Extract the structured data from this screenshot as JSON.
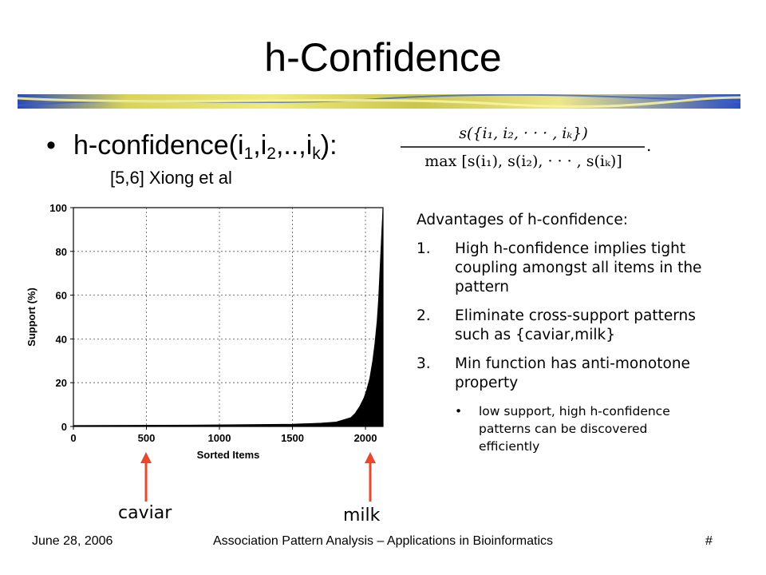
{
  "slide": {
    "title": "h-Confidence",
    "bullet": {
      "prefix": "h-confidence(i",
      "sub1": "1",
      "mid1": ",i",
      "sub2": "2",
      "mid2": ",..,i",
      "subk": "k",
      "suffix": "):"
    },
    "citation": "[5,6] Xiong et al",
    "formula": {
      "numerator": "s({i₁, i₂, · · · , iₖ})",
      "denominator": "max [s(i₁), s(i₂), · · · , s(iₖ)]",
      "trailing": "."
    }
  },
  "advantages": {
    "heading": "Advantages of h-confidence:",
    "items": [
      {
        "num": "1.",
        "text": "High h-confidence implies tight coupling amongst all items in the pattern"
      },
      {
        "num": "2.",
        "text": "Eliminate cross-support patterns such as {caviar,milk}"
      },
      {
        "num": "3.",
        "text": "Min function has anti-monotone property"
      }
    ],
    "sub_items": [
      {
        "bullet": "•",
        "text": "low support, high h-confidence patterns can be discovered efficiently"
      }
    ]
  },
  "callouts": {
    "caviar": "caviar",
    "milk": "milk",
    "arrow_color": "#e8482b"
  },
  "chart_data": {
    "type": "area",
    "xlabel": "Sorted Items",
    "ylabel": "Support (%)",
    "xlim": [
      0,
      2120
    ],
    "ylim": [
      0,
      100
    ],
    "x_ticks": [
      0,
      500,
      1000,
      1500,
      2000
    ],
    "y_ticks": [
      0,
      20,
      40,
      60,
      80,
      100
    ],
    "grid": true,
    "series": [
      {
        "x": [
          0,
          400,
          800,
          1200,
          1500,
          1700,
          1800,
          1850,
          1900,
          1930,
          1960,
          1990,
          2010,
          2030,
          2050,
          2065,
          2080,
          2090,
          2100,
          2110,
          2120
        ],
        "values": [
          0.4,
          0.5,
          0.6,
          0.8,
          1,
          1.5,
          2,
          3,
          4,
          6,
          9,
          13,
          17,
          22,
          30,
          38,
          48,
          58,
          72,
          86,
          100
        ]
      }
    ]
  },
  "footer": {
    "date": "June 28, 2006",
    "center": "Association Pattern Analysis – Applications in Bioinformatics",
    "page": "#"
  }
}
